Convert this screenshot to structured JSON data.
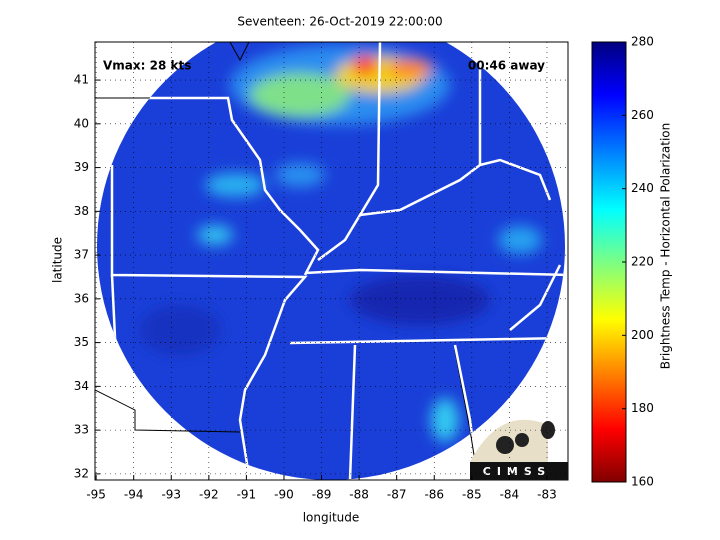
{
  "title": "Seventeen: 26-Oct-2019 22:00:00",
  "annotations": {
    "vmax": "Vmax: 28 kts",
    "time_away": "00:46 away"
  },
  "map": {
    "xlabel": "longitude",
    "ylabel": "latitude",
    "xlim": [
      -95.03,
      -82.44
    ],
    "ylim": [
      31.86,
      41.87
    ],
    "xticks": [
      -95,
      -94,
      -93,
      -92,
      -91,
      -90,
      -89,
      -88,
      -87,
      -86,
      -85,
      -84,
      -83
    ],
    "yticks": [
      32,
      33,
      34,
      35,
      36,
      37,
      38,
      39,
      40,
      41
    ]
  },
  "colorbar": {
    "label": "Brightness Temp - Horizontal Polarization",
    "lim": [
      160,
      280
    ],
    "ticks": [
      160,
      180,
      200,
      220,
      240,
      260,
      280
    ]
  },
  "logo": "CIMSS"
}
